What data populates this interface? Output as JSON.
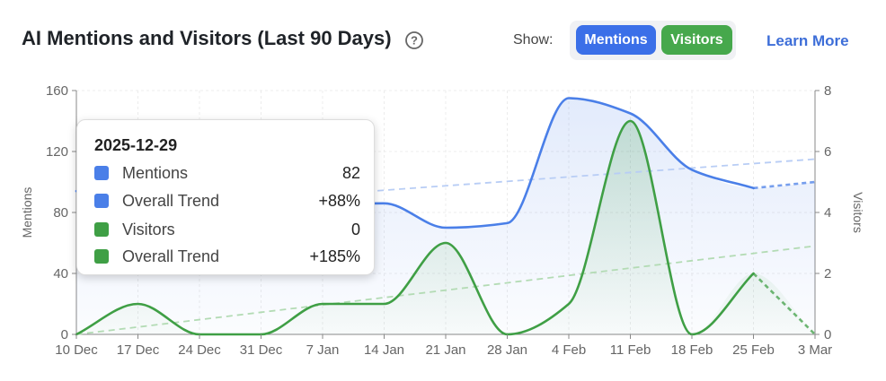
{
  "header": {
    "title": "AI Mentions and Visitors (Last 90 Days)",
    "show_label": "Show:",
    "mentions_button": "Mentions",
    "visitors_button": "Visitors",
    "learn_more": "Learn More"
  },
  "colors": {
    "mentions": "#4a7fe8",
    "visitors": "#3f9f45",
    "mentions_trend": "#b8cdf5",
    "visitors_trend": "#b3dbb4"
  },
  "tooltip": {
    "date": "2025-12-29",
    "rows": [
      {
        "label": "Mentions",
        "value": "82",
        "color": "#4a7fe8"
      },
      {
        "label": "Overall Trend",
        "value": "+88%",
        "color": "#4a7fe8"
      },
      {
        "label": "Visitors",
        "value": "0",
        "color": "#3f9f45"
      },
      {
        "label": "Overall Trend",
        "value": "+185%",
        "color": "#3f9f45"
      }
    ]
  },
  "chart_data": {
    "type": "line",
    "x": [
      "10 Dec",
      "17 Dec",
      "24 Dec",
      "31 Dec",
      "7 Jan",
      "14 Jan",
      "21 Jan",
      "28 Jan",
      "4 Feb",
      "11 Feb",
      "18 Feb",
      "25 Feb",
      "3 Mar"
    ],
    "y_left_label": "Mentions",
    "y_right_label": "Visitors",
    "y_left_ticks": [
      "0",
      "40",
      "80",
      "120",
      "160"
    ],
    "y_right_ticks": [
      "0",
      "2",
      "4",
      "6",
      "8"
    ],
    "ylim_left": [
      0,
      160
    ],
    "ylim_right": [
      0,
      8
    ],
    "series": [
      {
        "name": "Mentions",
        "axis": "left",
        "values": [
          94,
          95,
          95,
          82,
          85,
          86,
          70,
          73,
          155,
          145,
          108,
          96,
          100
        ],
        "last_segment_dashed": true
      },
      {
        "name": "Visitors",
        "axis": "right",
        "values": [
          0,
          1,
          0,
          0,
          1,
          1,
          3,
          0,
          1,
          7,
          0,
          2,
          0
        ],
        "last_segment_dashed": true
      }
    ],
    "trend_lines": [
      {
        "axis": "left",
        "start": 80,
        "end": 115
      },
      {
        "axis": "right",
        "start": 0,
        "end": 2.9
      }
    ],
    "grid": true,
    "legend": "none"
  }
}
